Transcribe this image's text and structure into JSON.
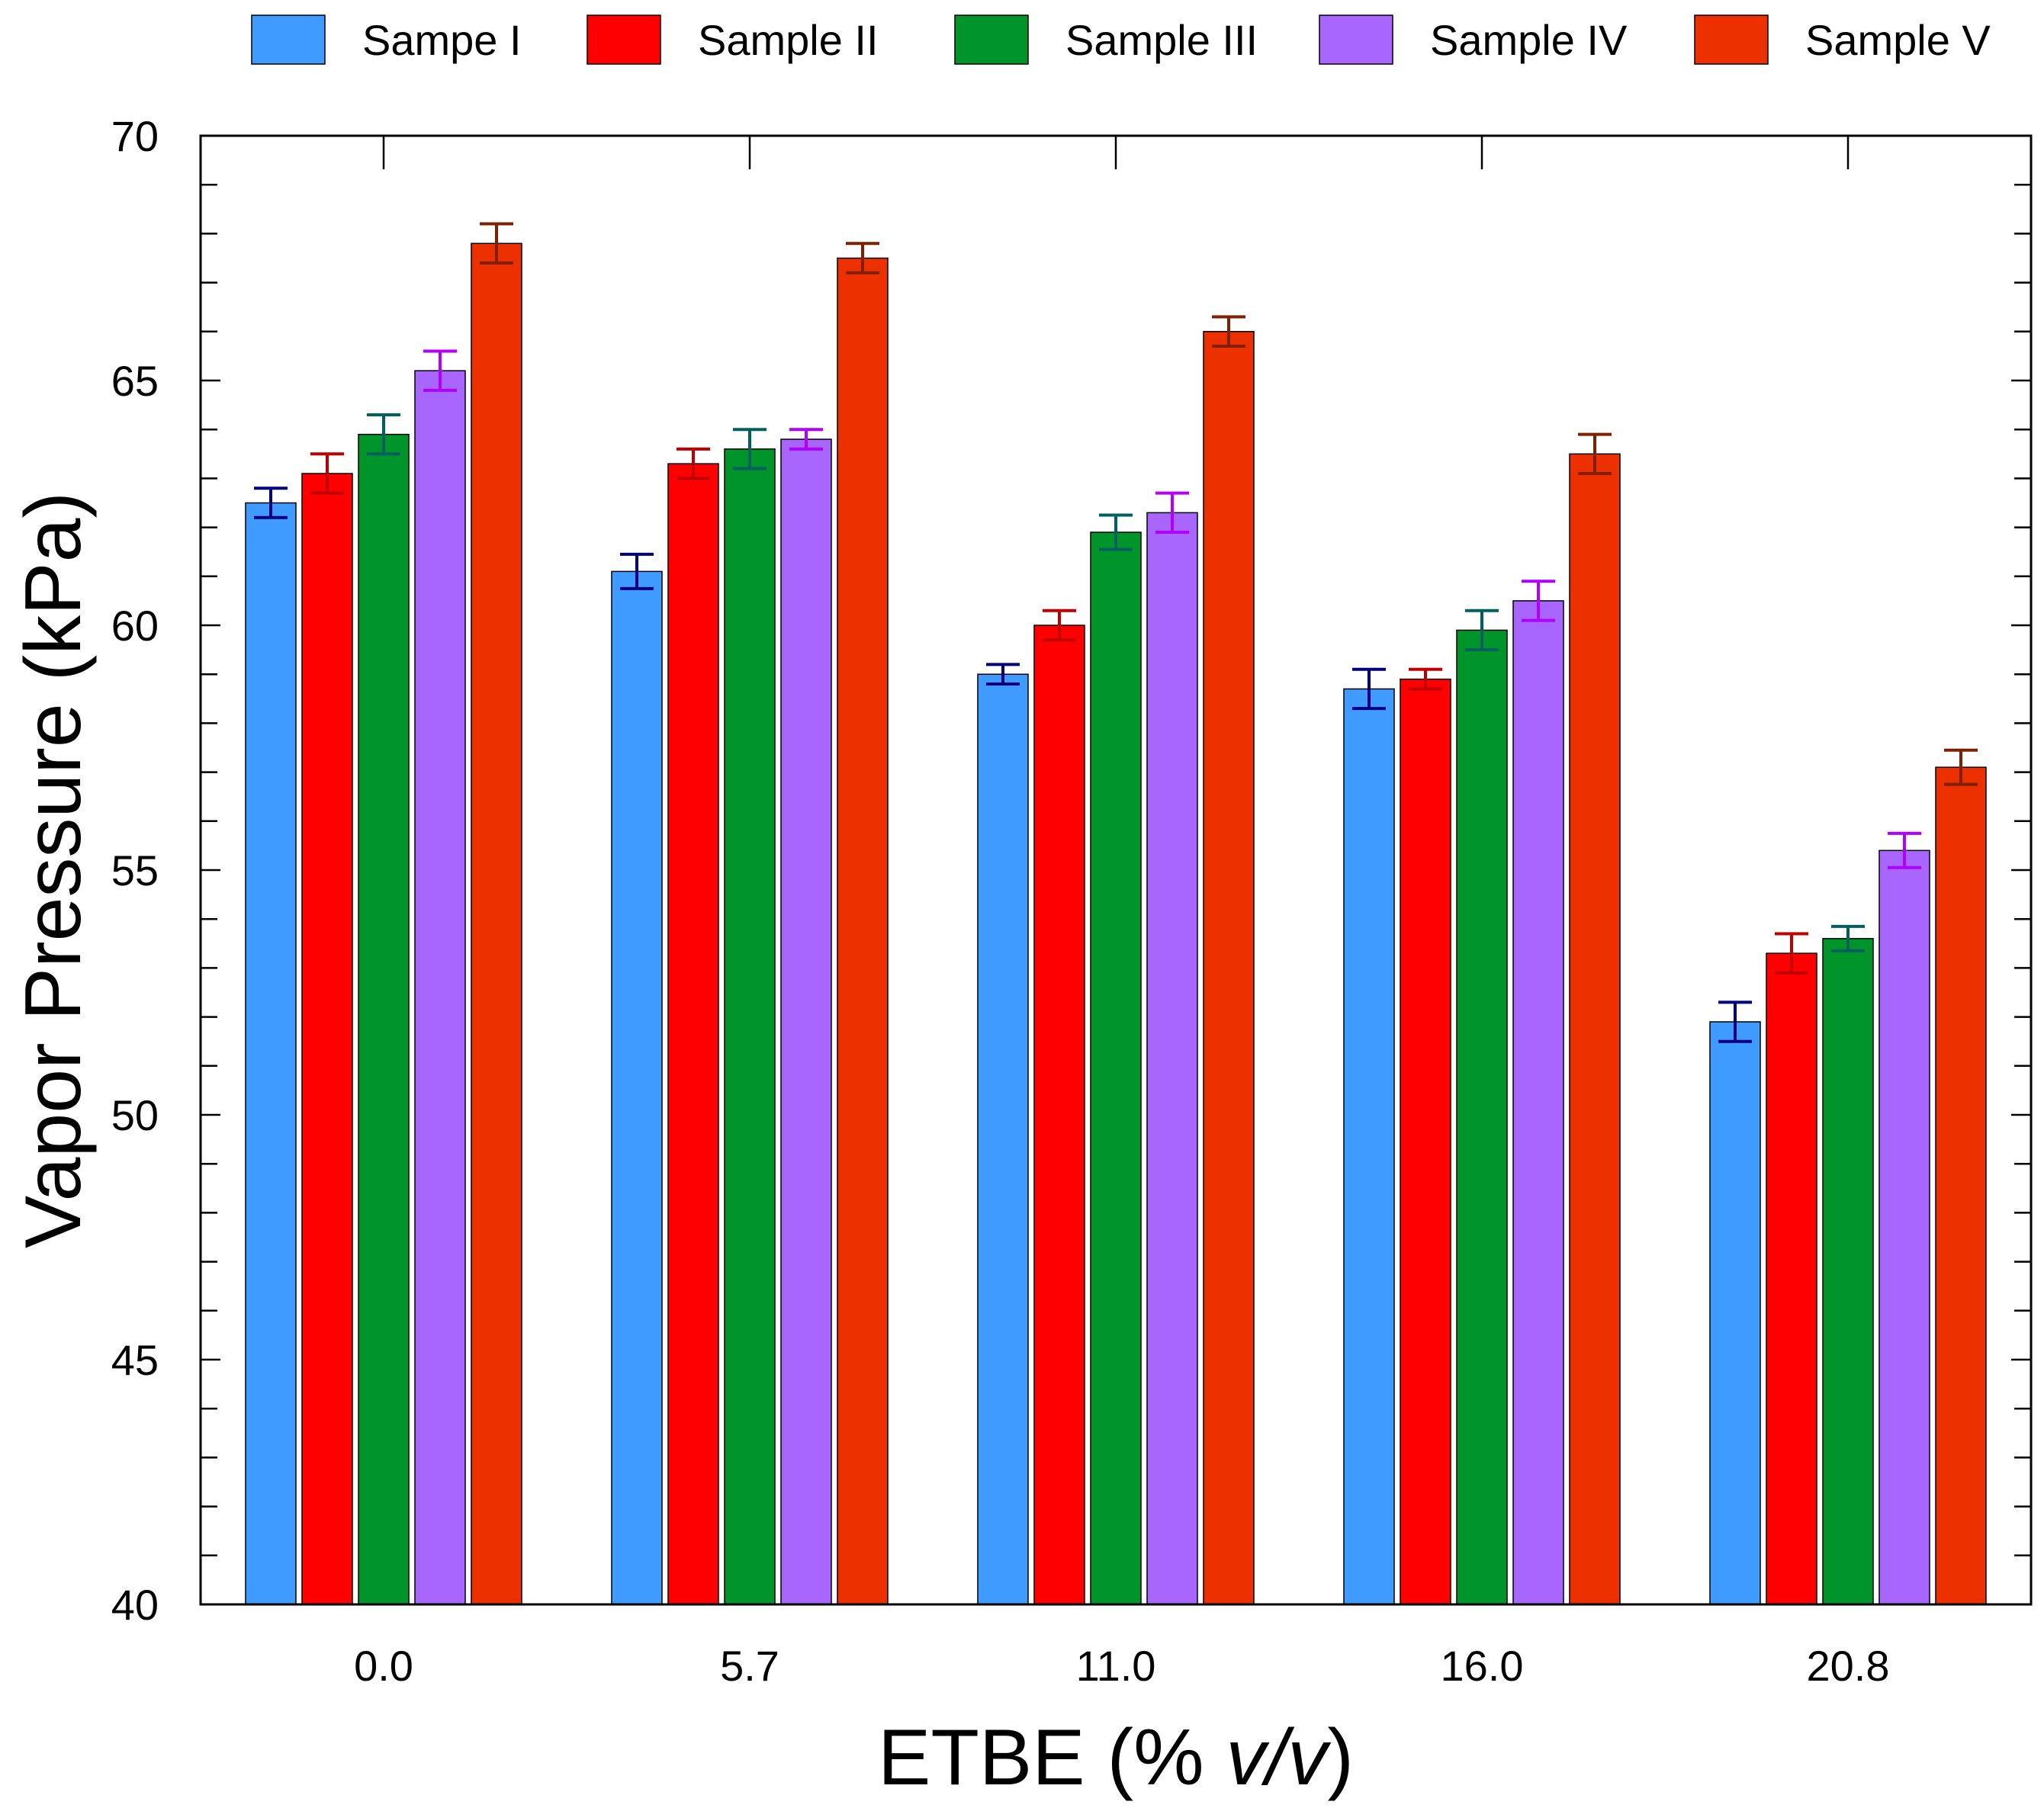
{
  "chart_data": {
    "type": "bar",
    "xlabel_parts": [
      "ETBE (% ",
      "v/v",
      ")"
    ],
    "ylabel": "Vapor Pressure (kPa)",
    "categories": [
      "0.0",
      "5.7",
      "11.0",
      "16.0",
      "20.8"
    ],
    "ylim": [
      40,
      70
    ],
    "yticks": [
      "40",
      "45",
      "50",
      "55",
      "60",
      "65",
      "70"
    ],
    "grid": false,
    "legend_position": "top",
    "series": [
      {
        "name": "Sampe I",
        "color": "#3f9bff",
        "error_color": "#00007f",
        "values": [
          62.5,
          61.1,
          59.0,
          58.7,
          51.9
        ],
        "errors": [
          0.3,
          0.35,
          0.2,
          0.4,
          0.4
        ]
      },
      {
        "name": "Sample II",
        "color": "#ff0000",
        "error_color": "#c00000",
        "values": [
          63.1,
          63.3,
          60.0,
          58.9,
          53.3
        ],
        "errors": [
          0.4,
          0.3,
          0.3,
          0.2,
          0.4
        ]
      },
      {
        "name": "Sample III",
        "color": "#00952a",
        "error_color": "#006060",
        "values": [
          63.9,
          63.6,
          61.9,
          59.9,
          53.6
        ],
        "errors": [
          0.4,
          0.4,
          0.35,
          0.4,
          0.25
        ]
      },
      {
        "name": "Sample IV",
        "color": "#a866ff",
        "error_color": "#b000ff",
        "values": [
          65.2,
          63.8,
          62.3,
          60.5,
          55.4
        ],
        "errors": [
          0.4,
          0.2,
          0.4,
          0.4,
          0.35
        ]
      },
      {
        "name": "Sample V",
        "color": "#ec3000",
        "error_color": "#7f2000",
        "values": [
          67.8,
          67.5,
          66.0,
          63.5,
          57.1
        ],
        "errors": [
          0.4,
          0.3,
          0.3,
          0.4,
          0.35
        ]
      }
    ]
  }
}
